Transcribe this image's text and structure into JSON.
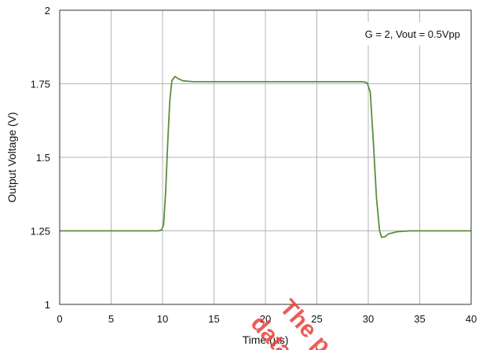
{
  "chart_data": {
    "type": "line",
    "title": "",
    "xlabel": "Time (µs)",
    "ylabel": "Output Voltage (V)",
    "xlim": [
      0,
      40
    ],
    "ylim": [
      1,
      2
    ],
    "x_ticks": [
      0,
      5,
      10,
      15,
      20,
      25,
      30,
      35,
      40
    ],
    "y_ticks": [
      {
        "value": 1,
        "label": "1"
      },
      {
        "value": 1.25,
        "label": "1.25"
      },
      {
        "value": 1.5,
        "label": "1.5"
      },
      {
        "value": 1.75,
        "label": "1.75"
      },
      {
        "value": 2,
        "label": "2"
      }
    ],
    "grid": true,
    "annotation": "G = 2, Vout = 0.5Vpp",
    "series": [
      {
        "color": "#5a8f3c",
        "points": [
          [
            0,
            1.25
          ],
          [
            9.6,
            1.25
          ],
          [
            9.9,
            1.253
          ],
          [
            10.1,
            1.27
          ],
          [
            10.3,
            1.38
          ],
          [
            10.5,
            1.55
          ],
          [
            10.7,
            1.69
          ],
          [
            10.9,
            1.76
          ],
          [
            11.2,
            1.775
          ],
          [
            11.5,
            1.768
          ],
          [
            12.0,
            1.76
          ],
          [
            13.0,
            1.757
          ],
          [
            20.0,
            1.757
          ],
          [
            29.5,
            1.757
          ],
          [
            29.9,
            1.753
          ],
          [
            30.2,
            1.72
          ],
          [
            30.5,
            1.55
          ],
          [
            30.8,
            1.36
          ],
          [
            31.1,
            1.25
          ],
          [
            31.3,
            1.228
          ],
          [
            31.6,
            1.23
          ],
          [
            32.0,
            1.24
          ],
          [
            32.8,
            1.247
          ],
          [
            34.0,
            1.25
          ],
          [
            40,
            1.25
          ]
        ]
      }
    ]
  },
  "watermark": {
    "lines": [
      "The p",
      "data"
    ],
    "color": "#e8413a"
  }
}
